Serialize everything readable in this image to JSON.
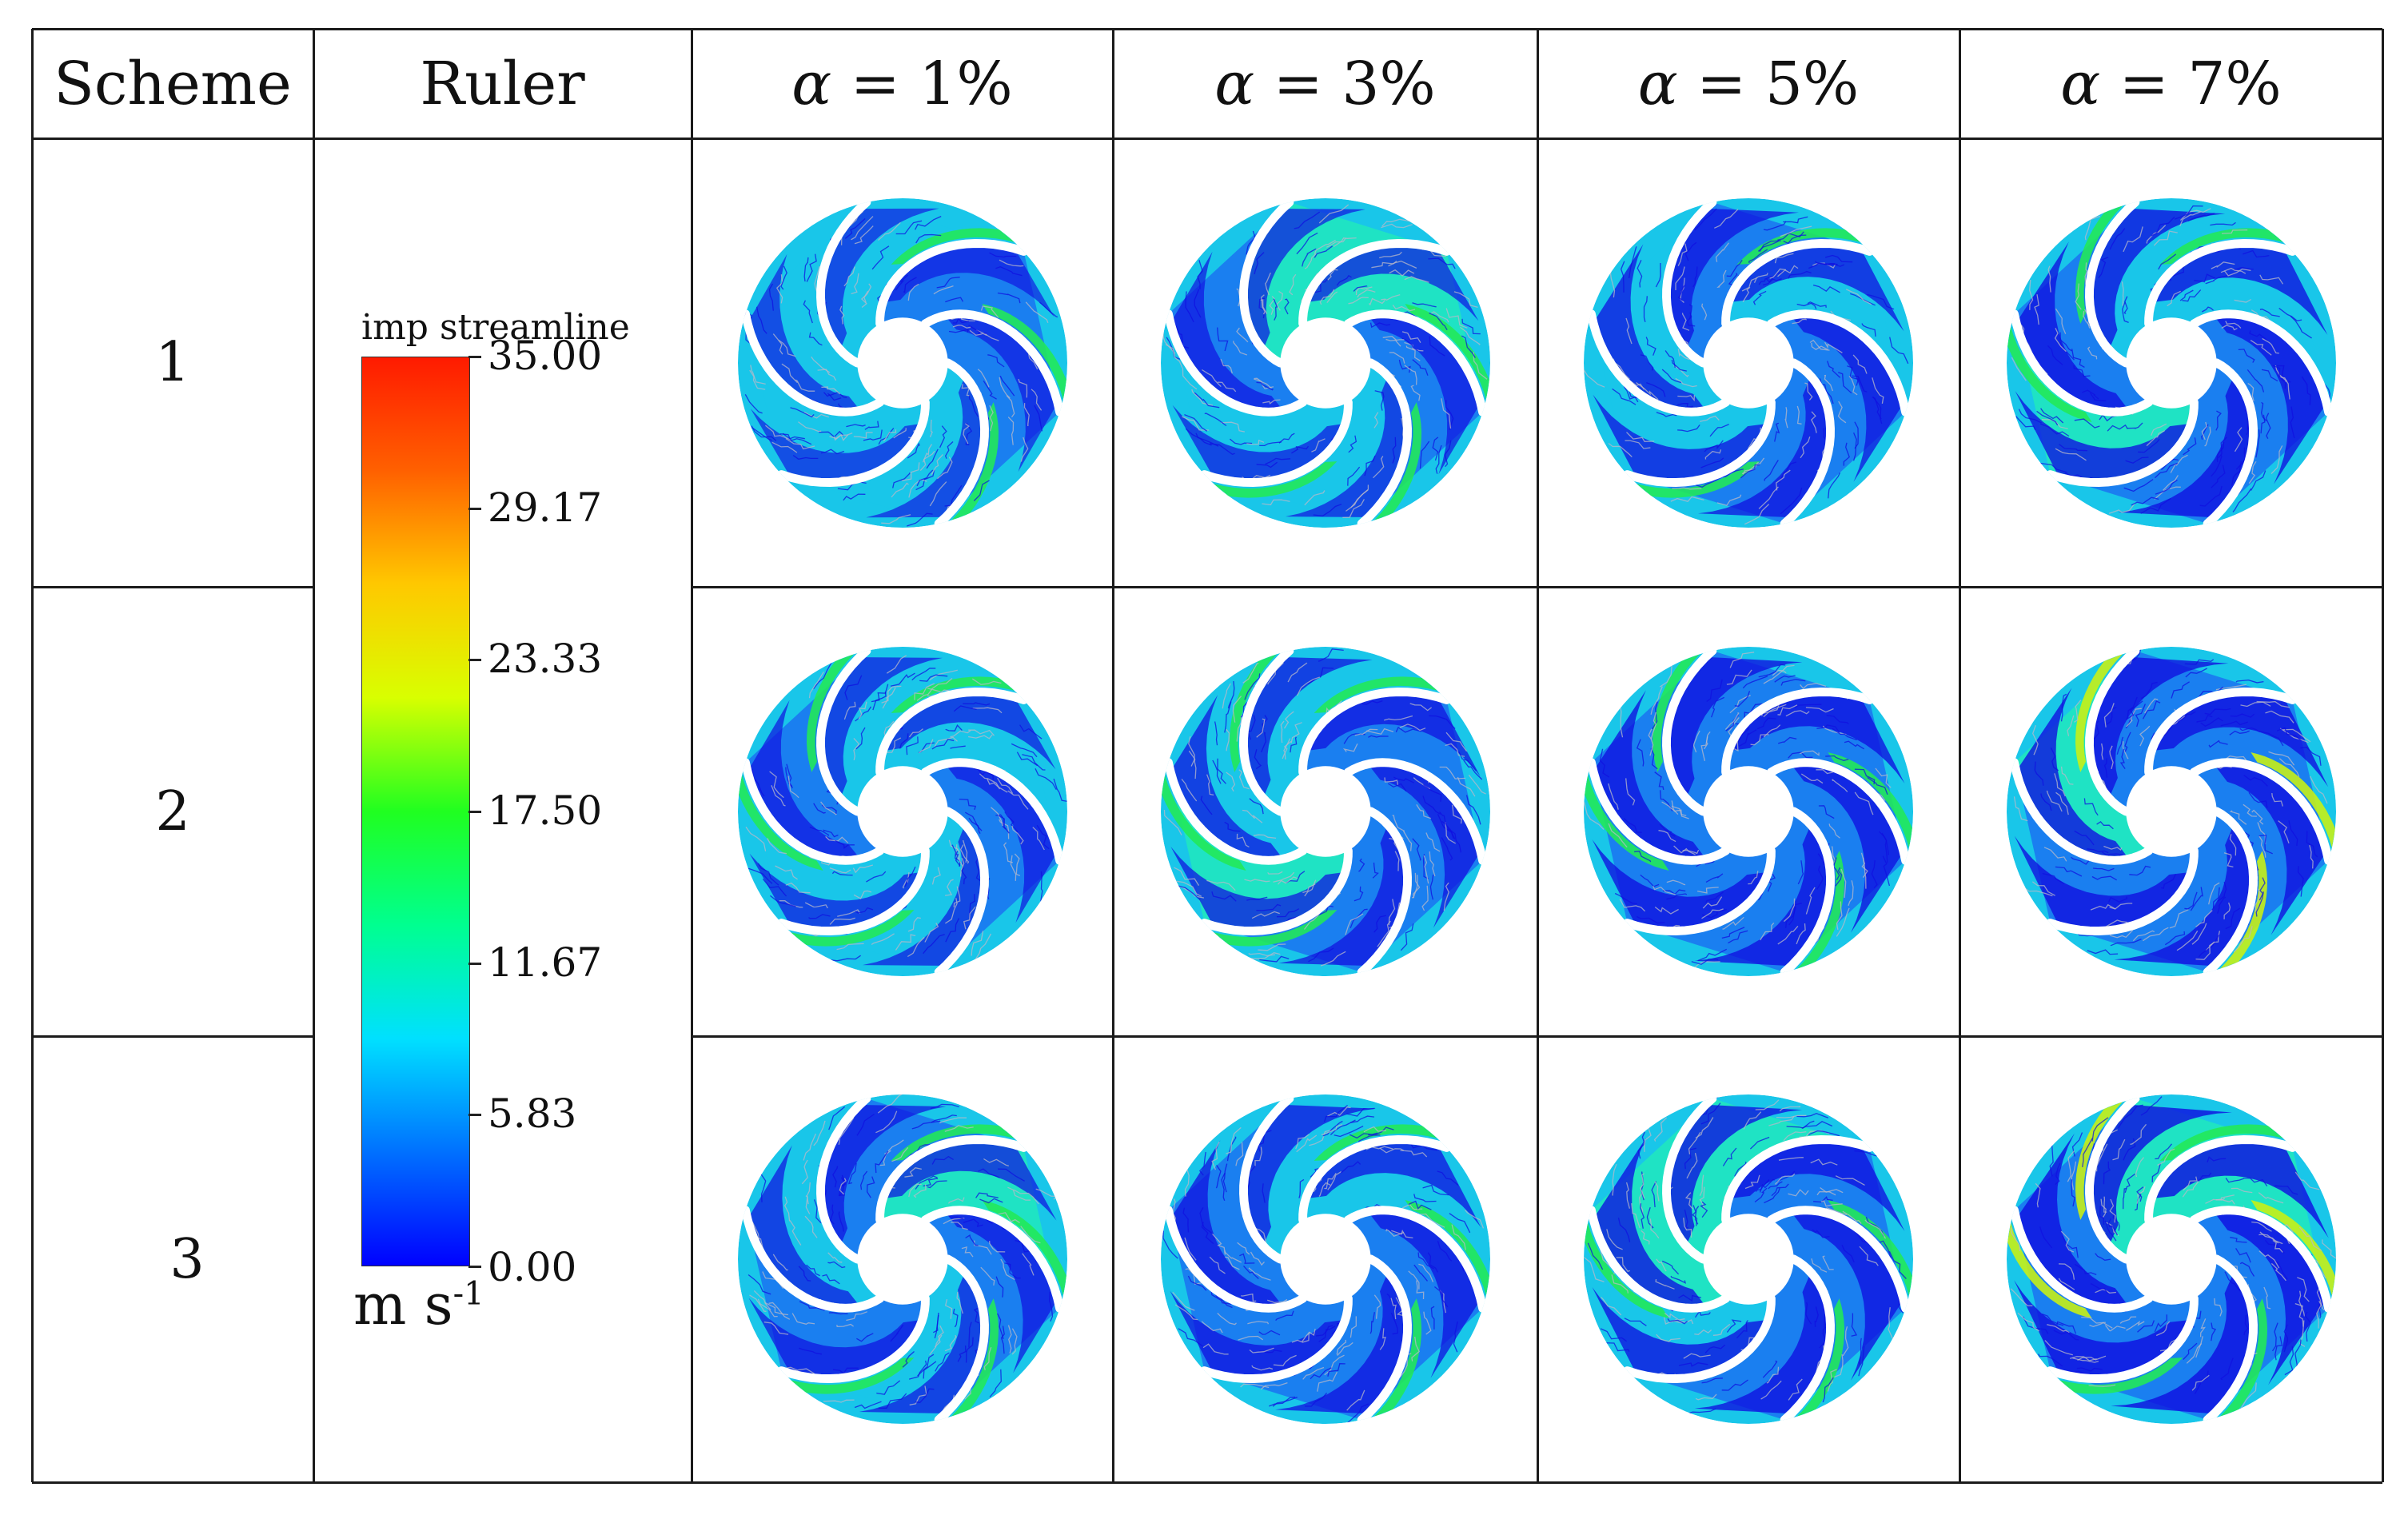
{
  "table": {
    "headers": {
      "scheme": "Scheme",
      "ruler": "Ruler",
      "alpha_symbol": "α",
      "alpha_sep": " = ",
      "columns": [
        "1%",
        "3%",
        "5%",
        "7%"
      ]
    },
    "rows": [
      "1",
      "2",
      "3"
    ]
  },
  "legend": {
    "title": "imp streamline",
    "ticks": [
      "35.00",
      "29.17",
      "23.33",
      "17.50",
      "11.67",
      "5.83",
      "0.00"
    ],
    "unit_base": "m s",
    "unit_exp": "-1",
    "colormap": [
      "#0000ff",
      "#0070ff",
      "#00e0ff",
      "#00ff90",
      "#20ff20",
      "#d8ff00",
      "#ffc800",
      "#ff6000",
      "#ff1a00"
    ]
  },
  "colors": {
    "low": "#1010e0",
    "mid_blue": "#1a7ff0",
    "cyan": "#19c6e9",
    "teal": "#1fe3c4",
    "green": "#22e85a",
    "yellow_green": "#c6f016",
    "streak": "#b8b8c8"
  },
  "panels": [
    {
      "row": 1,
      "col": 1,
      "intensity": 0.25
    },
    {
      "row": 1,
      "col": 2,
      "intensity": 0.3
    },
    {
      "row": 1,
      "col": 3,
      "intensity": 0.45
    },
    {
      "row": 1,
      "col": 4,
      "intensity": 0.5
    },
    {
      "row": 2,
      "col": 1,
      "intensity": 0.3
    },
    {
      "row": 2,
      "col": 2,
      "intensity": 0.4
    },
    {
      "row": 2,
      "col": 3,
      "intensity": 0.5
    },
    {
      "row": 2,
      "col": 4,
      "intensity": 0.55
    },
    {
      "row": 3,
      "col": 1,
      "intensity": 0.35
    },
    {
      "row": 3,
      "col": 2,
      "intensity": 0.45
    },
    {
      "row": 3,
      "col": 3,
      "intensity": 0.5
    },
    {
      "row": 3,
      "col": 4,
      "intensity": 0.6
    }
  ]
}
